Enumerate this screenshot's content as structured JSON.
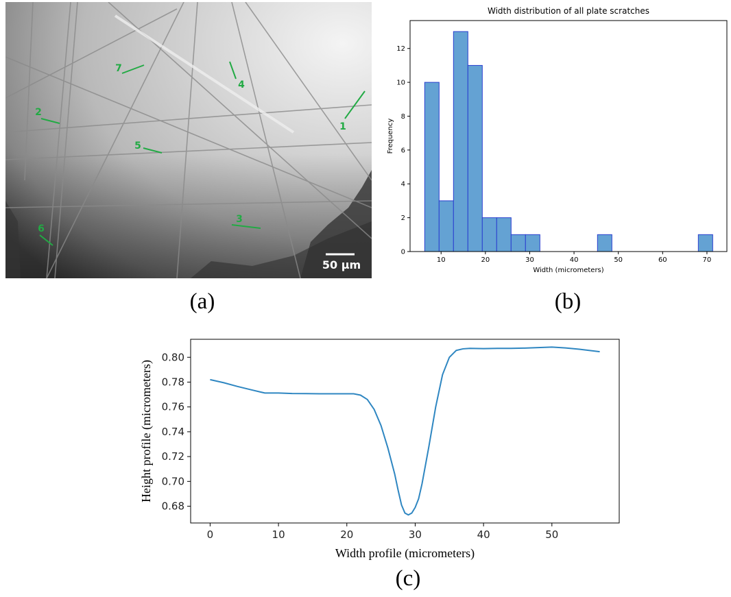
{
  "panel_labels": {
    "a": "(a)",
    "b": "(b)",
    "c": "(c)"
  },
  "micrograph": {
    "scale_bar": "50 μm",
    "annotation_color": "#22aa44",
    "markers": [
      "1",
      "2",
      "3",
      "4",
      "5",
      "6",
      "7"
    ]
  },
  "chart_data": [
    {
      "type": "bar",
      "title": "Width distribution of all plate scratches",
      "xlabel": "Width (micrometers)",
      "ylabel": "Frequency",
      "bin_edges": [
        6.3,
        9.55,
        12.8,
        16.05,
        19.3,
        22.55,
        25.8,
        29.05,
        32.3,
        35.55,
        38.8,
        42.05,
        45.3,
        48.55,
        51.8,
        55.05,
        58.3,
        61.55,
        64.8,
        68.05,
        71.3
      ],
      "values": [
        10,
        3,
        13,
        11,
        2,
        2,
        1,
        1,
        0,
        0,
        0,
        0,
        1,
        0,
        0,
        0,
        0,
        0,
        0,
        1
      ],
      "xlim": [
        3,
        74.5
      ],
      "ylim": [
        0,
        13.65
      ],
      "xticks": [
        10,
        20,
        30,
        40,
        50,
        60,
        70
      ],
      "yticks": [
        0,
        2,
        4,
        6,
        8,
        10,
        12
      ],
      "bar_color": "#64a2d3",
      "edge_color": "#2a3fcf",
      "grid": false
    },
    {
      "type": "line",
      "title": "",
      "xlabel": "Width profile (micrometers)",
      "ylabel": "Height profile (micrometers)",
      "xlim": [
        -2.85,
        59.85
      ],
      "ylim": [
        0.6665,
        0.8145
      ],
      "xticks": [
        0,
        10,
        20,
        30,
        40,
        50
      ],
      "yticks": [
        0.68,
        0.7,
        0.72,
        0.74,
        0.76,
        0.78,
        0.8
      ],
      "line_color": "#2e86c1",
      "grid": false,
      "x": [
        0,
        2,
        4,
        6,
        8,
        10,
        12,
        14,
        16,
        18,
        20,
        21,
        22,
        23,
        24,
        25,
        26,
        27,
        27.5,
        28,
        28.5,
        29,
        29.5,
        30,
        30.5,
        31,
        32,
        33,
        34,
        35,
        36,
        37,
        38,
        40,
        42,
        44,
        46,
        48,
        50,
        52,
        54,
        57
      ],
      "y": [
        0.782,
        0.7795,
        0.7765,
        0.7738,
        0.7712,
        0.7712,
        0.7708,
        0.7707,
        0.7706,
        0.7706,
        0.7706,
        0.7706,
        0.7695,
        0.766,
        0.758,
        0.745,
        0.727,
        0.706,
        0.693,
        0.681,
        0.6745,
        0.673,
        0.6745,
        0.679,
        0.686,
        0.698,
        0.728,
        0.76,
        0.786,
        0.8,
        0.8055,
        0.8068,
        0.8072,
        0.807,
        0.8072,
        0.8072,
        0.8074,
        0.8078,
        0.8082,
        0.8075,
        0.8065,
        0.8045
      ]
    }
  ]
}
